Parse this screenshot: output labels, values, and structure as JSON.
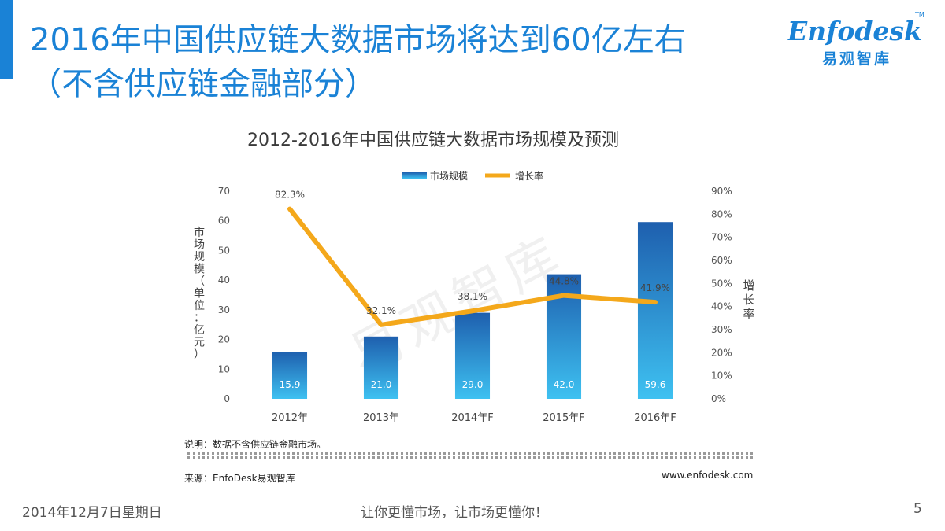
{
  "slide": {
    "title_line1": "2016年中国供应链大数据市场将达到60亿左右",
    "title_line2": "（不含供应链金融部分）",
    "note_desc": "说明：数据不含供应链金融市场。",
    "note_source": "来源：EnfoDesk易观智库",
    "website": "www.enfodesk.com",
    "date": "2014年12月7日星期日",
    "slogan": "让你更懂市场，让市场更懂你！",
    "page_number": "5",
    "watermark": "易观智库"
  },
  "logo": {
    "brand": "Enfodesk",
    "trademark": "TM",
    "subtitle": "易观智库"
  },
  "colors": {
    "accent": "#1a82d6",
    "bar_top": "#1e5fae",
    "bar_bottom": "#3ec1f1",
    "line": "#f4a81b"
  },
  "chart_data": {
    "type": "bar",
    "title": "2012-2016年中国供应链大数据市场规模及预测",
    "categories": [
      "2012年",
      "2013年",
      "2014年F",
      "2015年F",
      "2016年F"
    ],
    "series": [
      {
        "name": "市场规模",
        "type": "bar",
        "axis": "left",
        "values": [
          15.9,
          21.0,
          29.0,
          42.0,
          59.6
        ],
        "labels": [
          "15.9",
          "21.0",
          "29.0",
          "42.0",
          "59.6"
        ]
      },
      {
        "name": "增长率",
        "type": "line",
        "axis": "right",
        "values": [
          82.3,
          32.1,
          38.1,
          44.8,
          41.9
        ],
        "labels": [
          "82.3%",
          "32.1%",
          "38.1%",
          "44.8%",
          "41.9%"
        ]
      }
    ],
    "ylabel": "市场规模（单位：亿元）",
    "ylabel_right": "增长率",
    "ylim": [
      0,
      70
    ],
    "yticks": [
      "0",
      "10",
      "20",
      "30",
      "40",
      "50",
      "60",
      "70"
    ],
    "ylim_right": [
      0,
      90
    ],
    "yticks_right": [
      "0%",
      "10%",
      "20%",
      "30%",
      "40%",
      "50%",
      "60%",
      "70%",
      "80%",
      "90%"
    ],
    "grid": false,
    "legend": "top"
  }
}
